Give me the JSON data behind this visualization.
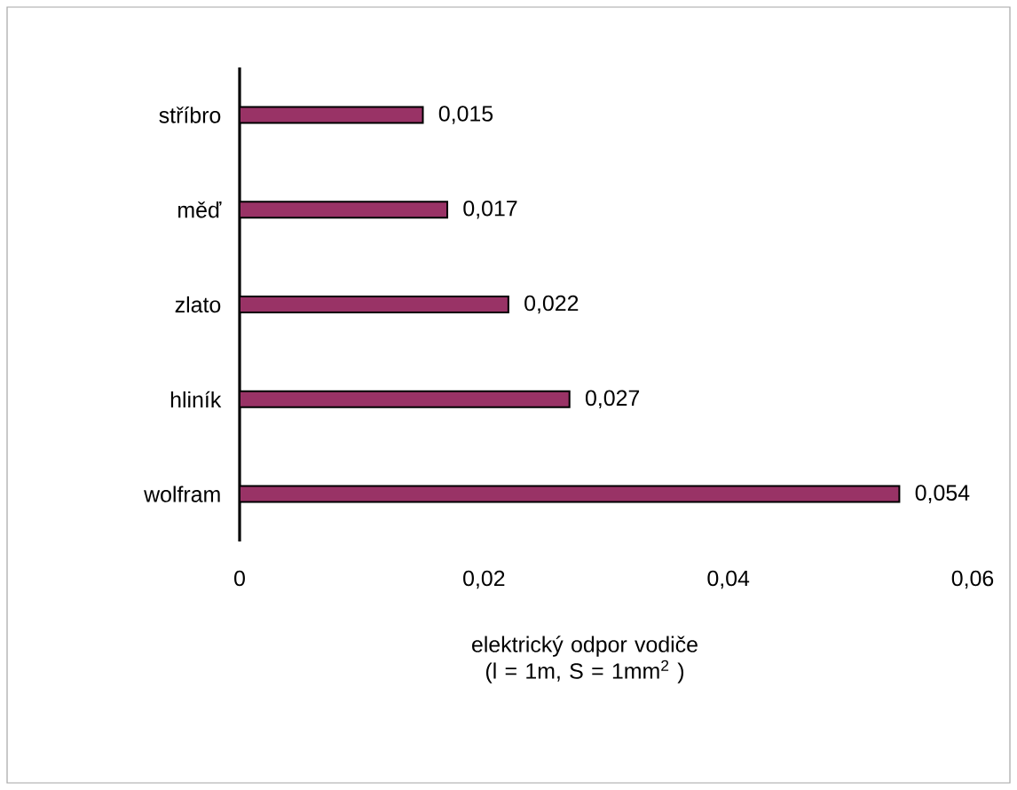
{
  "chart_data": {
    "type": "bar",
    "orientation": "horizontal",
    "categories": [
      "stříbro",
      "měď",
      "zlato",
      "hliník",
      "wolfram"
    ],
    "values": [
      0.015,
      0.017,
      0.022,
      0.027,
      0.054
    ],
    "value_labels": [
      "0,015",
      "0,017",
      "0,022",
      "0,027",
      "0,054"
    ],
    "color": "#993366",
    "xlabel": "elektrický odpor vodiče (l = 1m, S = 1mm$^{2}$ )",
    "xlim": [
      0,
      0.06
    ],
    "xticks": [
      0,
      {
        "value": 0.02,
        "label": "0,02"
      },
      {
        "value": 0.04,
        "label": "0,04"
      },
      {
        "value": 0.06,
        "label": "0,06"
      }
    ]
  }
}
